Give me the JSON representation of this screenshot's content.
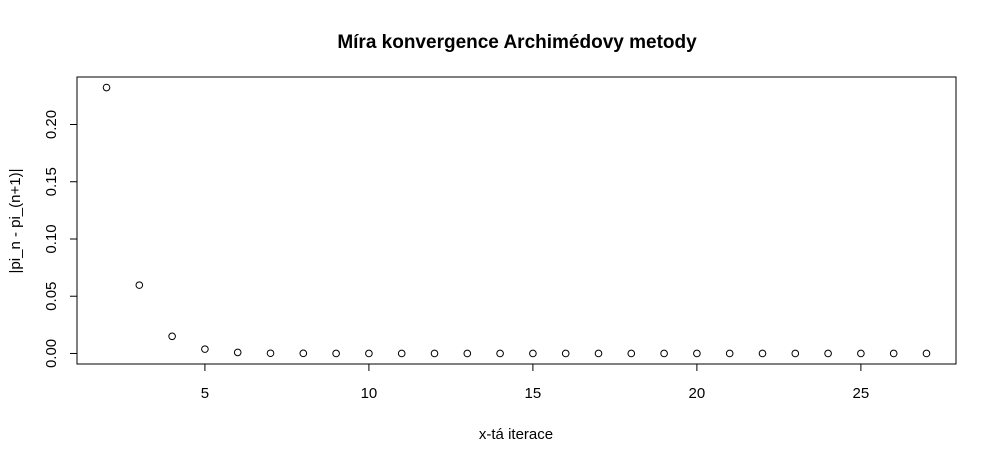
{
  "chart_data": {
    "type": "scatter",
    "title": "Míra konvergence Archimédovy metody",
    "xlabel": "x-tá iterace",
    "ylabel": "|pi_n - pi_(n+1)|",
    "xlim": [
      1.1,
      27.9
    ],
    "ylim": [
      -0.0092,
      0.2415
    ],
    "x_ticks": [
      5,
      10,
      15,
      20,
      25
    ],
    "y_ticks": [
      0.0,
      0.05,
      0.1,
      0.15,
      0.2
    ],
    "x_tick_labels": [
      "5",
      "10",
      "15",
      "20",
      "25"
    ],
    "y_tick_labels": [
      "0.00",
      "0.05",
      "0.10",
      "0.15",
      "0.20"
    ],
    "grid": false,
    "legend": "none",
    "marker": "open-circle",
    "color": "#000000",
    "series": [
      {
        "x": [
          2,
          3,
          4,
          5,
          6,
          7,
          8,
          9,
          10,
          11,
          12,
          13,
          14,
          15,
          16,
          17,
          18,
          19,
          20,
          21,
          22,
          23,
          24,
          25,
          26,
          27
        ],
        "y": [
          0.2323,
          0.0597,
          0.015,
          0.0038,
          0.0009,
          0.0002,
          0.0001,
          0.0,
          0.0,
          0.0,
          0.0,
          0.0,
          0.0,
          0.0,
          0.0,
          0.0,
          0.0,
          0.0,
          0.0,
          0.0,
          0.0,
          0.0,
          0.0,
          0.0,
          0.0,
          0.0
        ]
      }
    ]
  }
}
